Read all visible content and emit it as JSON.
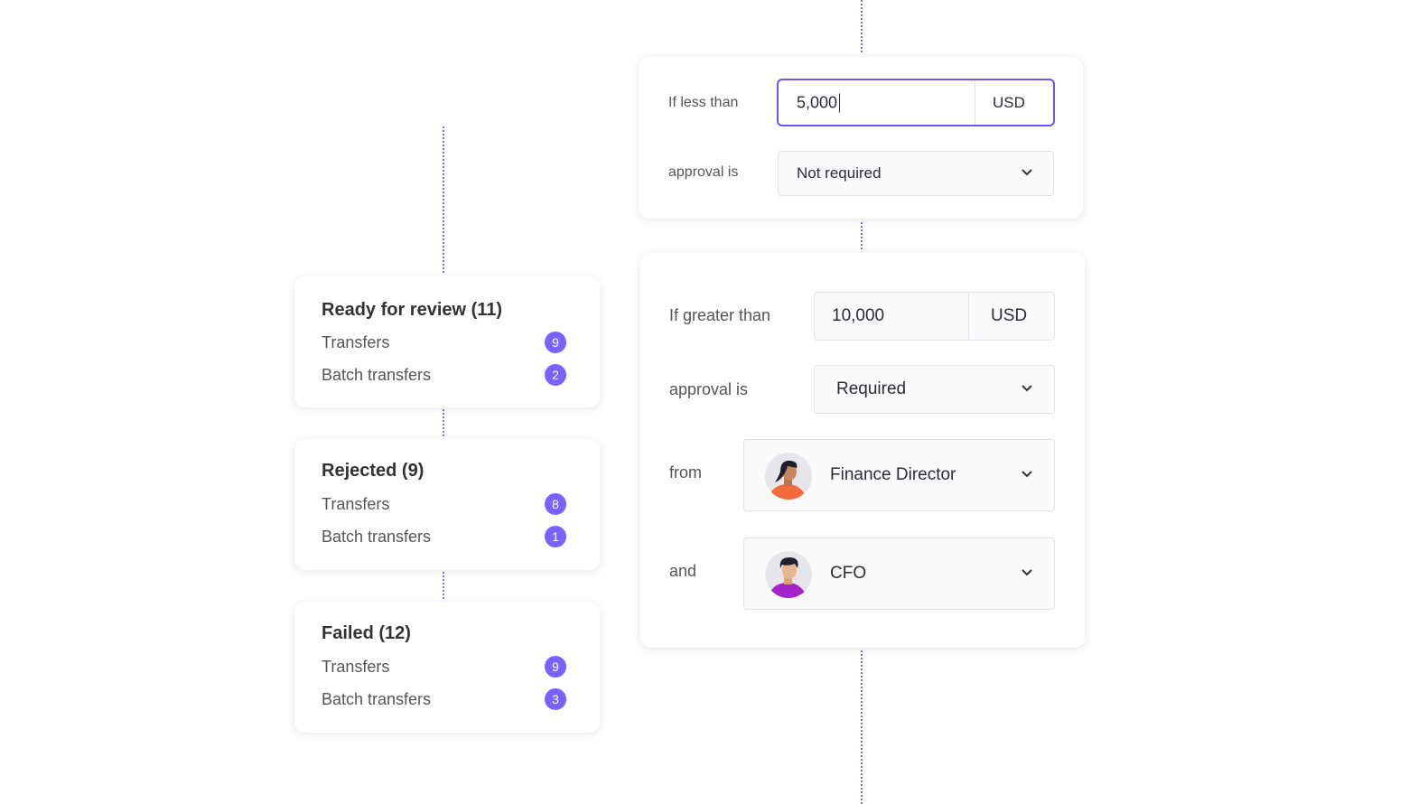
{
  "status_cards": [
    {
      "title": "Ready for review (11)",
      "rows": [
        {
          "label": "Transfers",
          "count": 9
        },
        {
          "label": "Batch transfers",
          "count": 2
        }
      ]
    },
    {
      "title": "Rejected (9)",
      "rows": [
        {
          "label": "Transfers",
          "count": 8
        },
        {
          "label": "Batch transfers",
          "count": 1
        }
      ]
    },
    {
      "title": "Failed (12)",
      "rows": [
        {
          "label": "Transfers",
          "count": 9
        },
        {
          "label": "Batch transfers",
          "count": 3
        }
      ]
    }
  ],
  "rules": [
    {
      "condition_label": "If less than",
      "amount": "5,000",
      "currency": "USD",
      "approval_label": "approval is",
      "approval": "Not required"
    },
    {
      "condition_label": "If greater than",
      "amount": "10,000",
      "currency": "USD",
      "approval_label": "approval is",
      "approval": "Required",
      "approvers": [
        {
          "label": "from",
          "role": "Finance Director"
        },
        {
          "label": "and",
          "role": "CFO"
        }
      ]
    }
  ]
}
